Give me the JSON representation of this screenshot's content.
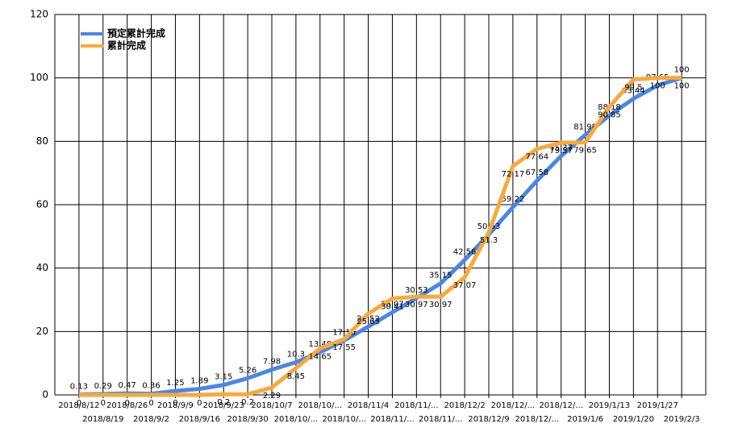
{
  "chart_data": {
    "type": "line",
    "categories": [
      "2018/8/12",
      "2018/8/19",
      "2018/8/26",
      "2018/9/2",
      "2018/9/9",
      "2018/9/16",
      "2018/9/23",
      "2018/9/30",
      "2018/10/7",
      "2018/10/...",
      "2018/10/...",
      "2018/10/...",
      "2018/11/4",
      "2018/11/...",
      "2018/11/...",
      "2018/11/...",
      "2018/12/2",
      "2018/12/9",
      "2018/12/...",
      "2018/12/...",
      "2018/12/...",
      "2019/1/6",
      "2019/1/13",
      "2019/1/20",
      "2019/1/27",
      "2019/2/3"
    ],
    "series": [
      {
        "name": "預定累計完成",
        "color": "#4a86e8",
        "values": [
          0.13,
          0.29,
          0.47,
          0.36,
          1.25,
          1.89,
          3.15,
          5.26,
          7.98,
          10.3,
          13.48,
          17.16,
          21.52,
          26.07,
          30.53,
          35.15,
          42.56,
          50.63,
          59.22,
          67.58,
          75.37,
          81.98,
          88.18,
          93.44,
          97.65,
          100
        ]
      },
      {
        "name": "累計完成",
        "color": "#f9a93a",
        "values": [
          0,
          0,
          0,
          0,
          0,
          0,
          0.2,
          0.2,
          2.29,
          8.45,
          14.65,
          17.55,
          25.63,
          30.41,
          30.97,
          30.97,
          37.07,
          51.3,
          72.17,
          77.64,
          79.57,
          79.65,
          90.85,
          99.5,
          100,
          100
        ]
      }
    ],
    "ylim": [
      0,
      120
    ],
    "yticks": [
      0,
      20,
      40,
      60,
      80,
      100,
      120
    ],
    "grid": true,
    "legend": "upper left"
  }
}
